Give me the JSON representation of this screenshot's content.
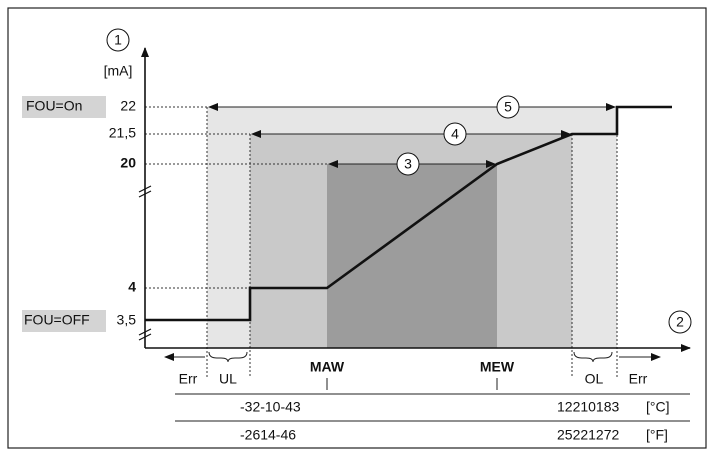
{
  "axis_labels": {
    "y_marker": "1",
    "y_unit": "[mA]",
    "x_marker": "2"
  },
  "levels": {
    "fou_on": "FOU=On",
    "v22": "22",
    "v21_5": "21,5",
    "v20": "20",
    "v4": "4",
    "fou_off": "FOU=OFF",
    "v3_5": "3,5"
  },
  "ranges": [
    "5",
    "4",
    "3"
  ],
  "zones": {
    "err_left": "Err",
    "ul": "UL",
    "maw": "MAW",
    "mew": "MEW",
    "ol": "OL",
    "err_right": "Err"
  },
  "scale_rows": [
    {
      "low": "-32-10-43",
      "high": "12210183",
      "unit": "[°C]"
    },
    {
      "low": "-2614-46",
      "high": "25221272",
      "unit": "[°F]"
    }
  ]
}
